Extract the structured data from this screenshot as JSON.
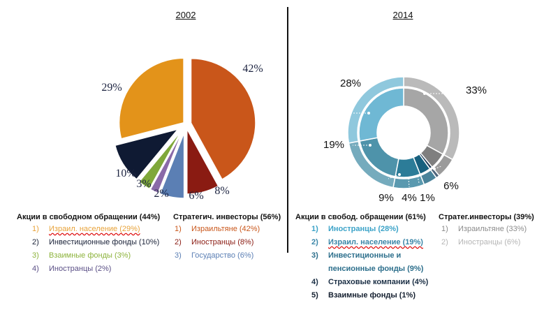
{
  "left": {
    "year": "2002",
    "header_free": "Акции в свободном обращении (44%)",
    "header_strat": "Стратегич. инвесторы (56%)",
    "free_items": [
      {
        "num": "1)",
        "label": "Израил. население (29%)",
        "color": "#e8a33a"
      },
      {
        "num": "2)",
        "label": "Инвестиционные фонды (10%)",
        "color": "#1a2238"
      },
      {
        "num": "3)",
        "label": "Взаимные фонды (3%)",
        "color": "#8db33c"
      },
      {
        "num": "4)",
        "label": "Иностранцы (2%)",
        "color": "#5a4f86"
      }
    ],
    "strat_items": [
      {
        "num": "1)",
        "label": "Израильтяне (42%)",
        "color": "#c9561a"
      },
      {
        "num": "2)",
        "label": "Иностранцы (8%)",
        "color": "#8a1b12"
      },
      {
        "num": "3)",
        "label": "Государство (6%)",
        "color": "#5b7fb4"
      }
    ]
  },
  "right": {
    "year": "2014",
    "header_free": "Акции в свобод. обращении (61%)",
    "header_strat": "Стратег.инвесторы (39%)",
    "free_items": [
      {
        "num": "1)",
        "label": "Иностранцы (28%)",
        "color": "#3ca3c8"
      },
      {
        "num": "2)",
        "label": "Израил. население (19%)",
        "color": "#3a86a8"
      },
      {
        "num": "3)",
        "label": "Инвестиционные  и",
        "color": "#2d6f8c"
      },
      {
        "num": "",
        "label": "пенсионные фонды (9%)",
        "color": "#2d6f8c"
      },
      {
        "num": "4)",
        "label": "Страховые компании (4%)",
        "color": "#1b2f45"
      },
      {
        "num": "5)",
        "label": "Взаимные фонды (1%)",
        "color": "#152030"
      }
    ],
    "strat_items": [
      {
        "num": "1)",
        "label": "Израильтяне (33%)",
        "color": "#8c8c8c"
      },
      {
        "num": "2)",
        "label": "Иностранцы (6%)",
        "color": "#b5b5b5"
      }
    ]
  },
  "chart_data": [
    {
      "type": "pie",
      "title": "2002",
      "slices": [
        {
          "name": "Израильтяне",
          "value": 42,
          "label": "42%",
          "color": "#c9561a"
        },
        {
          "name": "Иностранцы",
          "value": 8,
          "label": "8%",
          "color": "#8a1b12"
        },
        {
          "name": "Государство",
          "value": 6,
          "label": "6%",
          "color": "#5b7fb4"
        },
        {
          "name": "Иностранцы",
          "value": 2,
          "label": "2%",
          "color": "#8a6aa8"
        },
        {
          "name": "Взаимные фонды",
          "value": 3,
          "label": "3%",
          "color": "#7fa83a"
        },
        {
          "name": "Инвестиционные фонды",
          "value": 10,
          "label": "10%",
          "color": "#0f1a33"
        },
        {
          "name": "Израил. население",
          "value": 29,
          "label": "29%",
          "color": "#e3931a"
        }
      ]
    },
    {
      "type": "pie",
      "title": "2014",
      "slices": [
        {
          "name": "Израильтяне",
          "value": 33,
          "label": "33%",
          "color": "#a6a6a6"
        },
        {
          "name": "Иностранцы",
          "value": 6,
          "label": "6%",
          "color": "#7f7f7f"
        },
        {
          "name": "Взаимные фонды",
          "value": 1,
          "label": "1%",
          "color": "#1e3a56"
        },
        {
          "name": "Страховые компании",
          "value": 4,
          "label": "4%",
          "color": "#17607e"
        },
        {
          "name": "Инвестиционные и пенсионные фонды",
          "value": 9,
          "label": "9%",
          "color": "#2c7c98"
        },
        {
          "name": "Израил. население",
          "value": 19,
          "label": "19%",
          "color": "#4e93aa"
        },
        {
          "name": "Иностранцы",
          "value": 28,
          "label": "28%",
          "color": "#6fb8d4"
        }
      ]
    }
  ]
}
